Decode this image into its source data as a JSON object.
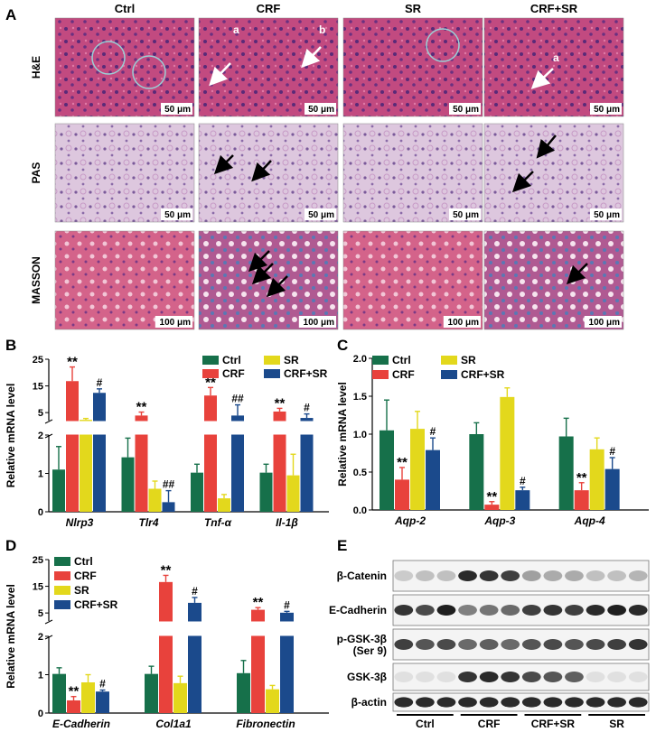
{
  "panels": {
    "a": "A",
    "b": "B",
    "c": "C",
    "d": "D",
    "e": "E"
  },
  "histology": {
    "columns": [
      "Ctrl",
      "CRF",
      "SR",
      "CRF+SR"
    ],
    "rows": [
      "H&E",
      "PAS",
      "MASSON"
    ],
    "scale_bars": [
      [
        "50 μm",
        "50 μm",
        "50 μm",
        "50 μm"
      ],
      [
        "50 μm",
        "50 μm",
        "50 μm",
        "50 μm"
      ],
      [
        "100 μm",
        "100 μm",
        "100 μm",
        "100 μm"
      ]
    ],
    "arrow_labels": {
      "a": "a",
      "b": "b"
    },
    "colors": {
      "he": "#c0407a",
      "pas": "#dcc3dc",
      "masson": "#d25a82",
      "masson_fibrosis": "#5a78b4"
    }
  },
  "legend": {
    "ctrl": "Ctrl",
    "crf": "CRF",
    "sr": "SR",
    "crfsr": "CRF+SR"
  },
  "colors": {
    "ctrl": "#16704a",
    "crf": "#e8423c",
    "sr": "#e3d81c",
    "crfsr": "#1b4a8c"
  },
  "chart_data": [
    {
      "panel": "B",
      "type": "bar",
      "ylabel": "Relative mRNA level",
      "categories": [
        "Nlrp3",
        "Tlr4",
        "Tnf-α",
        "Il-1β"
      ],
      "axis": {
        "type": "broken",
        "lower_ylim": [
          0,
          2
        ],
        "lower_ticks": [
          "0",
          "1",
          "2"
        ],
        "upper_ylim": [
          2,
          25
        ],
        "upper_ticks": [
          "5",
          "15",
          "25"
        ]
      },
      "series": [
        {
          "name": "Ctrl",
          "values": [
            1.1,
            1.42,
            1.02,
            1.02
          ],
          "errors": [
            0.6,
            0.5,
            0.22,
            0.22
          ]
        },
        {
          "name": "CRF",
          "values": [
            16.8,
            3.9,
            11.4,
            5.4
          ],
          "errors": [
            5.3,
            1.3,
            3.0,
            1.2
          ]
        },
        {
          "name": "SR",
          "values": [
            2.3,
            0.6,
            0.35,
            0.95
          ],
          "errors": [
            0.5,
            0.2,
            0.1,
            0.55
          ]
        },
        {
          "name": "CRF+SR",
          "values": [
            12.4,
            0.25,
            3.9,
            3.0
          ],
          "errors": [
            1.5,
            0.3,
            4.0,
            1.5
          ]
        }
      ],
      "significance": [
        {
          "category": 0,
          "series": 1,
          "label": "**"
        },
        {
          "category": 0,
          "series": 3,
          "label": "#"
        },
        {
          "category": 1,
          "series": 1,
          "label": "**"
        },
        {
          "category": 1,
          "series": 3,
          "label": "##"
        },
        {
          "category": 2,
          "series": 1,
          "label": "**"
        },
        {
          "category": 2,
          "series": 3,
          "label": "##"
        },
        {
          "category": 3,
          "series": 1,
          "label": "**"
        },
        {
          "category": 3,
          "series": 3,
          "label": "#"
        }
      ]
    },
    {
      "panel": "C",
      "type": "bar",
      "ylabel": "Relative mRNA level",
      "categories": [
        "Aqp-2",
        "Aqp-3",
        "Aqp-4"
      ],
      "axis": {
        "type": "linear",
        "ylim": [
          0,
          2.0
        ],
        "ticks": [
          "0.0",
          "0.5",
          "1.0",
          "1.5",
          "2.0"
        ]
      },
      "series": [
        {
          "name": "Ctrl",
          "values": [
            1.05,
            1.0,
            0.97
          ],
          "errors": [
            0.4,
            0.15,
            0.24
          ]
        },
        {
          "name": "CRF",
          "values": [
            0.4,
            0.07,
            0.26
          ],
          "errors": [
            0.16,
            0.04,
            0.1
          ]
        },
        {
          "name": "SR",
          "values": [
            1.07,
            1.49,
            0.8
          ],
          "errors": [
            0.23,
            0.12,
            0.15
          ]
        },
        {
          "name": "CRF+SR",
          "values": [
            0.79,
            0.26,
            0.54
          ],
          "errors": [
            0.16,
            0.04,
            0.15
          ]
        }
      ],
      "significance": [
        {
          "category": 0,
          "series": 1,
          "label": "**"
        },
        {
          "category": 0,
          "series": 3,
          "label": "#"
        },
        {
          "category": 1,
          "series": 1,
          "label": "**"
        },
        {
          "category": 1,
          "series": 3,
          "label": "#"
        },
        {
          "category": 2,
          "series": 1,
          "label": "**"
        },
        {
          "category": 2,
          "series": 3,
          "label": "#"
        }
      ]
    },
    {
      "panel": "D",
      "type": "bar",
      "ylabel": "Relative mRNA level",
      "categories": [
        "E-Cadherin",
        "Col1a1",
        "Fibronectin"
      ],
      "axis": {
        "type": "broken",
        "lower_ylim": [
          0,
          2
        ],
        "lower_ticks": [
          "0",
          "1",
          "2"
        ],
        "upper_ylim": [
          2,
          25
        ],
        "upper_ticks": [
          "5",
          "15",
          "25"
        ]
      },
      "series": [
        {
          "name": "Ctrl",
          "values": [
            1.02,
            1.02,
            1.04
          ],
          "errors": [
            0.16,
            0.2,
            0.33
          ]
        },
        {
          "name": "CRF",
          "values": [
            0.33,
            16.6,
            6.2
          ],
          "errors": [
            0.1,
            2.5,
            0.8
          ]
        },
        {
          "name": "SR",
          "values": [
            0.8,
            0.78,
            0.62
          ],
          "errors": [
            0.2,
            0.18,
            0.1
          ]
        },
        {
          "name": "CRF+SR",
          "values": [
            0.56,
            8.8,
            5.1
          ],
          "errors": [
            0.04,
            2.0,
            0.5
          ]
        }
      ],
      "significance": [
        {
          "category": 0,
          "series": 1,
          "label": "**"
        },
        {
          "category": 0,
          "series": 3,
          "label": "#"
        },
        {
          "category": 1,
          "series": 1,
          "label": "**"
        },
        {
          "category": 1,
          "series": 3,
          "label": "#"
        },
        {
          "category": 2,
          "series": 1,
          "label": "**"
        },
        {
          "category": 2,
          "series": 3,
          "label": "#"
        }
      ]
    }
  ],
  "blot": {
    "proteins": [
      "β-Catenin",
      "E-Cadherin",
      "p-GSK-3β\n(Ser 9)",
      "GSK-3β",
      "β-actin"
    ],
    "groups": [
      "Ctrl",
      "CRF",
      "CRF+SR",
      "SR"
    ],
    "band_intensity": [
      [
        0.15,
        0.2,
        0.2,
        0.9,
        0.85,
        0.8,
        0.35,
        0.3,
        0.3,
        0.2,
        0.2,
        0.25
      ],
      [
        0.85,
        0.75,
        0.95,
        0.5,
        0.55,
        0.6,
        0.8,
        0.85,
        0.8,
        0.9,
        0.95,
        0.9
      ],
      [
        0.8,
        0.7,
        0.75,
        0.6,
        0.65,
        0.6,
        0.7,
        0.75,
        0.7,
        0.75,
        0.8,
        0.85
      ],
      [
        0.05,
        0.05,
        0.05,
        0.85,
        0.9,
        0.85,
        0.75,
        0.7,
        0.65,
        0.05,
        0.05,
        0.05
      ],
      [
        0.9,
        0.9,
        0.9,
        0.9,
        0.9,
        0.9,
        0.9,
        0.9,
        0.9,
        0.9,
        0.9,
        0.9
      ]
    ]
  }
}
